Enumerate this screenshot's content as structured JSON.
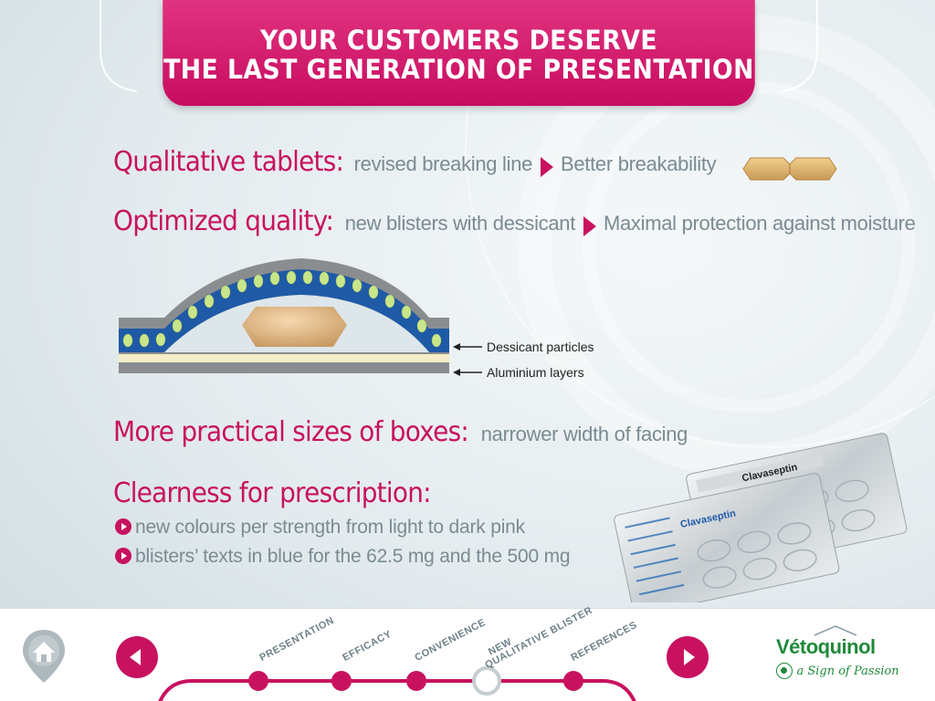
{
  "header": {
    "line1": "YOUR CUSTOMERS DESERVE",
    "line2": "THE LAST GENERATION OF PRESENTATION"
  },
  "rows": {
    "tablets": {
      "lead": "Qualitative tablets:",
      "sub": "revised breaking line",
      "result": "Better breakability"
    },
    "quality": {
      "lead": "Optimized quality:",
      "sub": "new blisters with dessicant",
      "result": "Maximal protection against moisture"
    },
    "boxes": {
      "lead": "More practical sizes of boxes:",
      "sub": "narrower width of facing"
    },
    "prescription": {
      "lead": "Clearness for prescription:",
      "bullets": [
        "new colours per strength from light to dark pink",
        "blisters’ texts in blue for the 62.5 mg and the 500 mg"
      ]
    }
  },
  "diagram": {
    "callouts": [
      "Dessicant particles",
      "Aluminium layers"
    ]
  },
  "product": {
    "name": "Clavaseptin"
  },
  "nav": {
    "steps": [
      {
        "label": "PRESENTATION",
        "active": false
      },
      {
        "label": "EFFICACY",
        "active": false
      },
      {
        "label": "CONVENIENCE",
        "active": false
      },
      {
        "label": "NEW QUALITATIVE BLISTER",
        "label_line1": "NEW",
        "label_line2": "QUALITATIVE BLISTER",
        "active": true
      },
      {
        "label": "REFERENCES",
        "active": false
      }
    ],
    "home_icon": "home-icon",
    "prev_icon": "chevron-left-icon",
    "next_icon": "chevron-right-icon"
  },
  "brand": {
    "name": "Vétoquinol",
    "tagline": "a Sign of Passion"
  },
  "colors": {
    "accent": "#c8125f",
    "text_grey": "#7a8b93",
    "brand_green": "#1f8a3a",
    "blister_blue": "#1f5aa6",
    "dessicant_green": "#c9e58a"
  }
}
